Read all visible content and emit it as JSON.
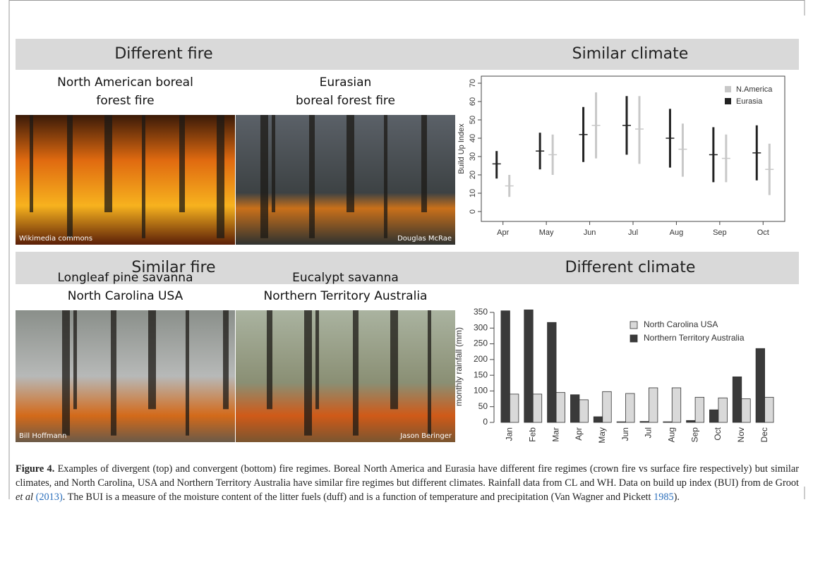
{
  "figure": {
    "headers": [
      "Different  fire",
      "Similar climate",
      "Similar fire",
      "Different climate"
    ],
    "photos": [
      {
        "title": [
          "North American boreal",
          "forest fire"
        ],
        "credit": "Wikimedia commons"
      },
      {
        "title": [
          "Eurasian",
          "boreal forest fire"
        ],
        "credit": "Douglas McRae"
      },
      {
        "title": [
          "Longleaf pine savanna",
          "North Carolina USA"
        ],
        "credit": "Bill Hoffmann"
      },
      {
        "title": [
          "Eucalypt savanna",
          "Northern Territory Australia"
        ],
        "credit": "Jason Beringer"
      }
    ]
  },
  "chart_data": [
    {
      "type": "errorbar",
      "y_label": "Build Up Index",
      "categories": [
        "Apr",
        "May",
        "Jun",
        "Jul",
        "Aug",
        "Sep",
        "Oct"
      ],
      "ylim": [
        0,
        70
      ],
      "yticks": [
        0,
        10,
        20,
        30,
        40,
        50,
        60,
        70
      ],
      "legend": "top-right",
      "series": [
        {
          "name": "N.America",
          "color": "#c8c8c8",
          "values": [
            14,
            31,
            47,
            45,
            34,
            29,
            23
          ],
          "low": [
            8,
            20,
            29,
            26,
            19,
            16,
            9
          ],
          "high": [
            20,
            42,
            65,
            63,
            48,
            42,
            37
          ]
        },
        {
          "name": "Eurasia",
          "color": "#222222",
          "values": [
            26,
            33,
            42,
            47,
            40,
            31,
            32
          ],
          "low": [
            18,
            23,
            27,
            31,
            24,
            16,
            17
          ],
          "high": [
            33,
            43,
            57,
            63,
            56,
            46,
            47
          ]
        }
      ]
    },
    {
      "type": "bar",
      "y_label": "monthly rainfall (mm)",
      "categories": [
        "Jan",
        "Feb",
        "Mar",
        "Apr",
        "May",
        "Jun",
        "Jul",
        "Aug",
        "Sep",
        "Oct",
        "Nov",
        "Dec"
      ],
      "ylim": [
        0,
        350
      ],
      "yticks": [
        0,
        50,
        100,
        150,
        200,
        250,
        300,
        350
      ],
      "legend": "top-right",
      "series": [
        {
          "name": "North Carolina USA",
          "color": "#d9d9d9",
          "values": [
            90,
            90,
            95,
            72,
            98,
            92,
            110,
            110,
            80,
            78,
            75,
            80
          ]
        },
        {
          "name": "Northern Territory Australia",
          "color": "#3a3a3a",
          "values": [
            355,
            358,
            318,
            88,
            18,
            2,
            3,
            2,
            6,
            40,
            145,
            235
          ]
        }
      ]
    }
  ],
  "caption": {
    "label": "Figure 4.",
    "text_1": "Examples of divergent (top) and convergent (bottom) fire regimes. Boreal North America and Eurasia have different fire regimes (crown fire vs surface fire respectively) but similar climates, and North Carolina, USA and Northern Territory Australia have similar fire regimes but different climates. Rainfall data from CL and WH. Data on build up index (BUI) from de Groot",
    "italic": "et al",
    "ref_1": "(2013)",
    "text_2": ". The BUI is a measure of the moisture content of the litter fuels (duff) and is a function of temperature and precipitation (Van Wagner and Pickett",
    "ref_2": "1985",
    "text_3": ")."
  }
}
